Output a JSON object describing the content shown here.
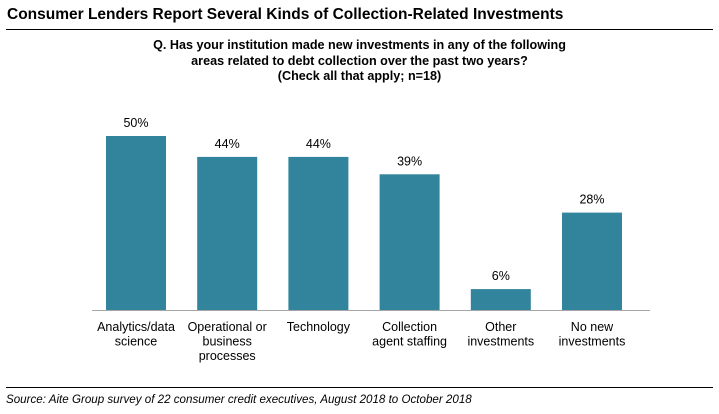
{
  "title": "Consumer Lenders Report Several Kinds of Collection-Related Investments",
  "question": {
    "line1": "Q. Has your institution made new investments in any of the following",
    "line2": "areas related to debt collection over the past two years?",
    "line3": "(Check all that apply; n=18)"
  },
  "source": "Source: Aite Group survey of 22 consumer credit executives, August 2018 to October 2018",
  "colors": {
    "bar": "#31849B",
    "axis": "#A6A6A6",
    "text": "#000000"
  },
  "chart_data": {
    "type": "bar",
    "categories": [
      [
        "Analytics/data",
        "science"
      ],
      [
        "Operational or",
        "business",
        "processes"
      ],
      [
        "Technology"
      ],
      [
        "Collection",
        "agent staffing"
      ],
      [
        "Other",
        "investments"
      ],
      [
        "No new",
        "investments"
      ]
    ],
    "values": [
      50,
      44,
      44,
      39,
      6,
      28
    ],
    "value_labels": [
      "50%",
      "44%",
      "44%",
      "39%",
      "6%",
      "28%"
    ],
    "unit": "%",
    "ylim": [
      0,
      50
    ],
    "grid": false,
    "legend": "none"
  }
}
